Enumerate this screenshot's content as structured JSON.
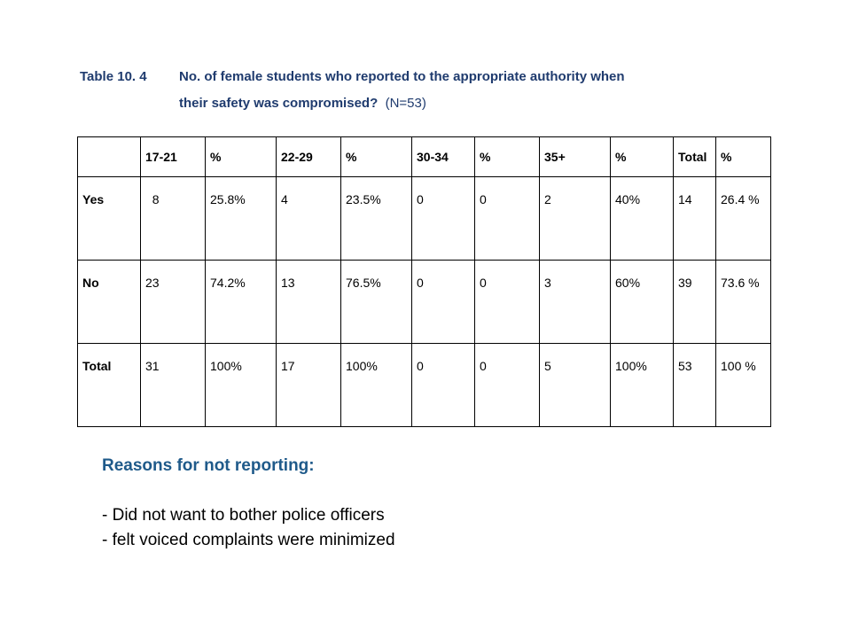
{
  "caption": {
    "label": "Table  10. 4",
    "line1": "No. of female students who reported to the appropriate authority when",
    "line2": "their safety was compromised?",
    "n": "(N=53)"
  },
  "table": {
    "headers": [
      "",
      "17-21",
      "%",
      "22-29",
      "%",
      "30-34",
      "%",
      "35+",
      "%",
      "Total",
      "%"
    ],
    "rows": [
      {
        "label": "Yes",
        "cells": [
          "8",
          "25.8%",
          "4",
          "23.5%",
          "0",
          "0",
          "2",
          "40%",
          "14",
          "26.4 %"
        ]
      },
      {
        "label": "No",
        "cells": [
          "23",
          "74.2%",
          "13",
          "76.5%",
          "0",
          "0",
          "3",
          "60%",
          "39",
          "73.6 %"
        ]
      },
      {
        "label": "Total",
        "cells": [
          "31",
          "100%",
          "17",
          "100%",
          "0",
          "0",
          "5",
          "100%",
          "53",
          "100 %"
        ]
      }
    ]
  },
  "reasons": {
    "heading": "Reasons for not reporting:",
    "items": [
      "- Did not want to bother police officers",
      "- felt voiced complaints were minimized"
    ]
  }
}
